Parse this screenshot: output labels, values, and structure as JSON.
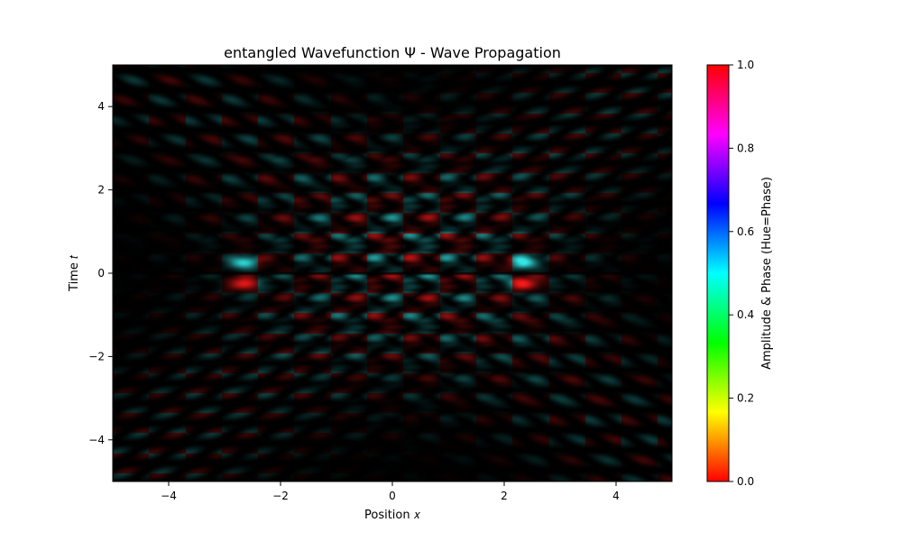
{
  "chart_data": {
    "type": "heatmap",
    "title": "entangled Wavefunction Ψ - Wave Propagation",
    "xlabel": "Position 𝑥",
    "ylabel": "Time 𝑡",
    "xlim": [
      -5,
      5
    ],
    "ylim": [
      -5,
      5
    ],
    "x_ticks": [
      -4,
      -2,
      0,
      2,
      4
    ],
    "y_ticks": [
      -4,
      -2,
      0,
      2,
      4
    ],
    "x_tick_labels": [
      "−4",
      "−2",
      "0",
      "2",
      "4"
    ],
    "y_tick_labels": [
      "−4",
      "−2",
      "0",
      "2",
      "4"
    ],
    "pattern": {
      "description": "two counter-propagating lattices of bright blobs on black",
      "lattice_spacing_x": 0.65,
      "lattice_spacing_t": 0.48,
      "t_positive_color": "#ff1a1a",
      "t_negative_color": "#33e6e6",
      "bright_centers": [
        {
          "x": -2.65,
          "t": 0.25,
          "phase": 0.5
        },
        {
          "x": 2.35,
          "t": 0.25,
          "phase": 0.5
        },
        {
          "x": -2.65,
          "t": -0.25,
          "phase": 0.0
        },
        {
          "x": 2.35,
          "t": -0.25,
          "phase": 0.0
        }
      ]
    },
    "colorbar": {
      "label": "Amplitude & Phase (Hue=Phase)",
      "colormap": "hsv",
      "range": [
        0,
        1
      ],
      "ticks": [
        0.0,
        0.2,
        0.4,
        0.6,
        0.8,
        1.0
      ],
      "tick_labels": [
        "0.0",
        "0.2",
        "0.4",
        "0.6",
        "0.8",
        "1.0"
      ]
    }
  }
}
